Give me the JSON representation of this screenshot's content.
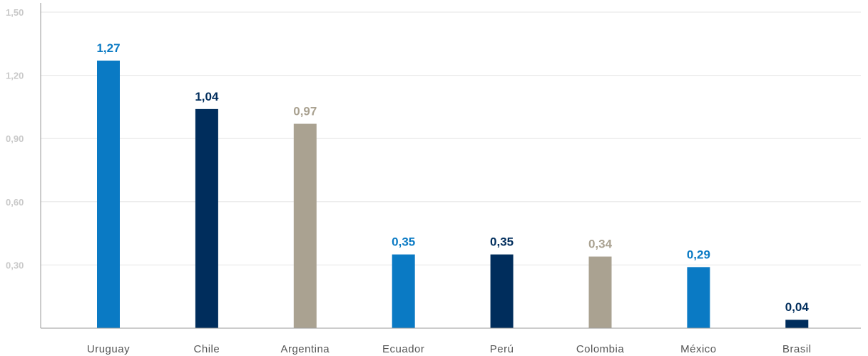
{
  "chart_data": {
    "type": "bar",
    "categories": [
      "Uruguay",
      "Chile",
      "Argentina",
      "Ecuador",
      "Perú",
      "Colombia",
      "México",
      "Brasil"
    ],
    "values": [
      1.27,
      1.04,
      0.97,
      0.35,
      0.35,
      0.34,
      0.29,
      0.04
    ],
    "data_labels": [
      "1,27",
      "1,04",
      "0,97",
      "0,35",
      "0,35",
      "0,34",
      "0,29",
      "0,04"
    ],
    "bar_colors": [
      "#0a7ac4",
      "#002d5c",
      "#aaa291",
      "#0a7ac4",
      "#002d5c",
      "#aaa291",
      "#0a7ac4",
      "#002d5c"
    ],
    "ylim": [
      0,
      1.5
    ],
    "yticks": [
      0.3,
      0.6,
      0.9,
      1.2,
      1.5
    ],
    "ytick_labels": [
      "0,30",
      "0,60",
      "0,90",
      "1,20",
      "1,50"
    ],
    "grid": true,
    "title": "",
    "xlabel": "",
    "ylabel": ""
  }
}
